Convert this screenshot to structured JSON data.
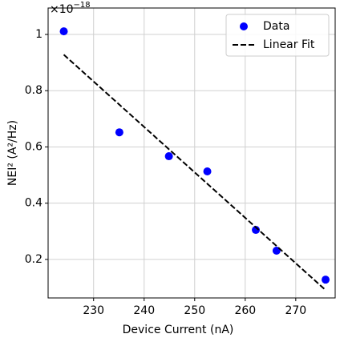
{
  "chart_data": {
    "type": "scatter",
    "x_label": "Device Current (nA)",
    "y_label": "NEI² (A²/Hz)",
    "y_offset_label": {
      "base": "×10",
      "exponent": "−18"
    },
    "series": [
      {
        "name": "Data",
        "color": "#0000ff",
        "x": [
          224.1,
          235.1,
          244.9,
          252.5,
          262.1,
          266.2,
          275.9
        ],
        "values": [
          1.011,
          0.652,
          0.567,
          0.513,
          0.305,
          0.231,
          0.128
        ]
      },
      {
        "name": "Linear Fit",
        "type": "line",
        "color": "#000000",
        "x": [
          224.1,
          275.9
        ],
        "values": [
          0.928,
          0.091
        ]
      }
    ],
    "xlim": [
      221.0,
      277.8
    ],
    "ylim": [
      0.063,
      1.094
    ],
    "xticks": [
      230,
      240,
      250,
      260,
      270
    ],
    "yticks": [
      0.2,
      0.4,
      0.6,
      0.8,
      1.0
    ],
    "grid": true,
    "legend": "upper right"
  }
}
